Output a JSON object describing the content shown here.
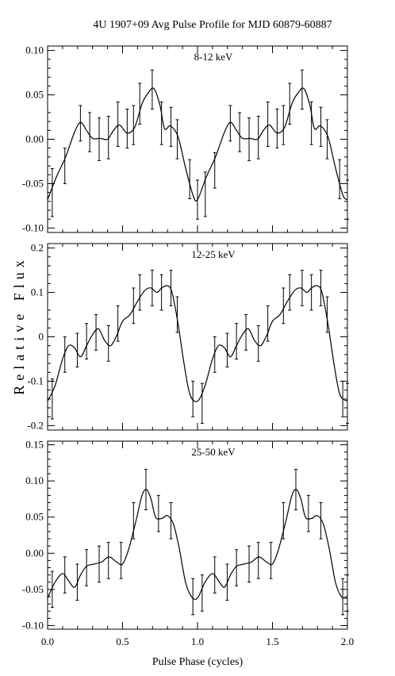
{
  "title": "4U 1907+09 Avg Pulse Profile for MJD 60879-60887",
  "ylabel": "Relative Flux",
  "xlabel": "Pulse Phase (cycles)",
  "x_ticks": [
    "0.0",
    "0.5",
    "1.0",
    "1.5",
    "2.0"
  ],
  "chart_data": [
    {
      "type": "line",
      "panel_label": "8-12 keV",
      "xlim": [
        0.0,
        2.0
      ],
      "ylim": [
        -0.105,
        0.105
      ],
      "y_ticks": [
        "0.10",
        "0.05",
        "0.00",
        "-0.05",
        "-0.10"
      ],
      "y_tick_values": [
        0.1,
        0.05,
        0.0,
        -0.05,
        -0.1
      ],
      "x": [
        0.031,
        0.115,
        0.219,
        0.281,
        0.344,
        0.406,
        0.469,
        0.531,
        0.573,
        0.615,
        0.698,
        0.76,
        0.823,
        0.865,
        0.948,
        1.0,
        1.052,
        1.115,
        1.219,
        1.281,
        1.344,
        1.406,
        1.469,
        1.531,
        1.573,
        1.615,
        1.698,
        1.76,
        1.823,
        1.865,
        1.948,
        2.0
      ],
      "y": [
        -0.06,
        -0.03,
        0.018,
        0.008,
        0.0,
        0.002,
        0.017,
        0.012,
        0.016,
        0.04,
        0.056,
        0.018,
        0.014,
        0.0,
        -0.045,
        -0.068,
        -0.062,
        -0.035,
        0.018,
        0.008,
        0.0,
        0.002,
        0.017,
        0.012,
        0.016,
        0.04,
        0.056,
        0.018,
        0.014,
        0.0,
        -0.045,
        -0.068
      ],
      "yerr": [
        0.027,
        0.02,
        0.02,
        0.022,
        0.024,
        0.024,
        0.025,
        0.022,
        0.022,
        0.023,
        0.022,
        0.024,
        0.022,
        0.022,
        0.022,
        0.022,
        0.025,
        0.02,
        0.02,
        0.022,
        0.024,
        0.024,
        0.025,
        0.022,
        0.022,
        0.023,
        0.022,
        0.024,
        0.022,
        0.022,
        0.022,
        0.022
      ],
      "curve": [
        [
          0.0,
          -0.068
        ],
        [
          0.06,
          -0.042
        ],
        [
          0.12,
          -0.02
        ],
        [
          0.18,
          0.008
        ],
        [
          0.22,
          0.019
        ],
        [
          0.26,
          0.01
        ],
        [
          0.3,
          0.001
        ],
        [
          0.35,
          0.001
        ],
        [
          0.4,
          0.0
        ],
        [
          0.44,
          0.01
        ],
        [
          0.48,
          0.016
        ],
        [
          0.53,
          0.007
        ],
        [
          0.58,
          0.013
        ],
        [
          0.63,
          0.04
        ],
        [
          0.67,
          0.052
        ],
        [
          0.71,
          0.057
        ],
        [
          0.75,
          0.038
        ],
        [
          0.78,
          0.012
        ],
        [
          0.82,
          0.015
        ],
        [
          0.87,
          0.003
        ],
        [
          0.92,
          -0.032
        ],
        [
          0.97,
          -0.063
        ],
        [
          1.0,
          -0.068
        ],
        [
          1.06,
          -0.042
        ],
        [
          1.12,
          -0.02
        ],
        [
          1.18,
          0.008
        ],
        [
          1.22,
          0.019
        ],
        [
          1.26,
          0.01
        ],
        [
          1.3,
          0.001
        ],
        [
          1.35,
          0.001
        ],
        [
          1.4,
          0.0
        ],
        [
          1.44,
          0.01
        ],
        [
          1.48,
          0.016
        ],
        [
          1.53,
          0.007
        ],
        [
          1.58,
          0.013
        ],
        [
          1.63,
          0.04
        ],
        [
          1.67,
          0.052
        ],
        [
          1.71,
          0.057
        ],
        [
          1.75,
          0.038
        ],
        [
          1.78,
          0.012
        ],
        [
          1.82,
          0.015
        ],
        [
          1.87,
          0.003
        ],
        [
          1.92,
          -0.032
        ],
        [
          1.97,
          -0.063
        ],
        [
          2.0,
          -0.068
        ]
      ]
    },
    {
      "type": "line",
      "panel_label": "12-25 keV",
      "xlim": [
        0.0,
        2.0
      ],
      "ylim": [
        -0.21,
        0.21
      ],
      "y_ticks": [
        "0.2",
        "0.1",
        "0",
        "-0.1",
        "-0.2"
      ],
      "y_tick_values": [
        0.2,
        0.1,
        0.0,
        -0.1,
        -0.2
      ],
      "x": [
        0.031,
        0.115,
        0.198,
        0.26,
        0.323,
        0.406,
        0.469,
        0.573,
        0.615,
        0.698,
        0.76,
        0.823,
        0.865,
        0.969,
        1.031,
        1.115,
        1.198,
        1.26,
        1.323,
        1.406,
        1.469,
        1.573,
        1.615,
        1.698,
        1.76,
        1.823,
        1.865,
        1.969,
        2.0
      ],
      "y": [
        -0.14,
        -0.04,
        -0.03,
        -0.01,
        0.01,
        -0.015,
        0.03,
        0.07,
        0.1,
        0.11,
        0.1,
        0.11,
        0.05,
        -0.14,
        -0.15,
        -0.04,
        -0.03,
        -0.01,
        0.01,
        -0.015,
        0.03,
        0.07,
        0.1,
        0.11,
        0.1,
        0.11,
        0.05,
        -0.14,
        -0.15
      ],
      "yerr": [
        0.045,
        0.04,
        0.038,
        0.04,
        0.04,
        0.04,
        0.04,
        0.04,
        0.04,
        0.04,
        0.04,
        0.04,
        0.04,
        0.04,
        0.045,
        0.04,
        0.038,
        0.04,
        0.04,
        0.04,
        0.04,
        0.04,
        0.04,
        0.04,
        0.04,
        0.04,
        0.04,
        0.04,
        0.045
      ],
      "curve": [
        [
          0.0,
          -0.145
        ],
        [
          0.05,
          -0.11
        ],
        [
          0.1,
          -0.05
        ],
        [
          0.14,
          -0.02
        ],
        [
          0.18,
          -0.025
        ],
        [
          0.22,
          -0.045
        ],
        [
          0.26,
          -0.02
        ],
        [
          0.3,
          0.005
        ],
        [
          0.34,
          0.018
        ],
        [
          0.38,
          -0.008
        ],
        [
          0.42,
          -0.02
        ],
        [
          0.46,
          0.002
        ],
        [
          0.5,
          0.035
        ],
        [
          0.55,
          0.05
        ],
        [
          0.6,
          0.08
        ],
        [
          0.65,
          0.105
        ],
        [
          0.69,
          0.11
        ],
        [
          0.73,
          0.1
        ],
        [
          0.76,
          0.11
        ],
        [
          0.8,
          0.115
        ],
        [
          0.83,
          0.1
        ],
        [
          0.87,
          0.03
        ],
        [
          0.91,
          -0.06
        ],
        [
          0.95,
          -0.13
        ],
        [
          1.0,
          -0.145
        ],
        [
          1.05,
          -0.11
        ],
        [
          1.1,
          -0.05
        ],
        [
          1.14,
          -0.02
        ],
        [
          1.18,
          -0.025
        ],
        [
          1.22,
          -0.045
        ],
        [
          1.26,
          -0.02
        ],
        [
          1.3,
          0.005
        ],
        [
          1.34,
          0.018
        ],
        [
          1.38,
          -0.008
        ],
        [
          1.42,
          -0.02
        ],
        [
          1.46,
          0.002
        ],
        [
          1.5,
          0.035
        ],
        [
          1.55,
          0.05
        ],
        [
          1.6,
          0.08
        ],
        [
          1.65,
          0.105
        ],
        [
          1.69,
          0.11
        ],
        [
          1.73,
          0.1
        ],
        [
          1.76,
          0.11
        ],
        [
          1.8,
          0.115
        ],
        [
          1.83,
          0.1
        ],
        [
          1.87,
          0.03
        ],
        [
          1.91,
          -0.06
        ],
        [
          1.95,
          -0.13
        ],
        [
          2.0,
          -0.145
        ]
      ]
    },
    {
      "type": "line",
      "panel_label": "25-50 keV",
      "xlim": [
        0.0,
        2.0
      ],
      "ylim": [
        -0.105,
        0.155
      ],
      "y_ticks": [
        "0.15",
        "0.10",
        "0.05",
        "0.00",
        "-0.05",
        "-0.10"
      ],
      "y_tick_values": [
        0.15,
        0.1,
        0.05,
        0.0,
        -0.05,
        -0.1
      ],
      "x": [
        0.031,
        0.115,
        0.198,
        0.26,
        0.344,
        0.406,
        0.49,
        0.573,
        0.656,
        0.74,
        0.823,
        0.969,
        1.031,
        1.115,
        1.198,
        1.26,
        1.344,
        1.406,
        1.49,
        1.573,
        1.656,
        1.74,
        1.823,
        1.969,
        2.0
      ],
      "y": [
        -0.05,
        -0.03,
        -0.04,
        -0.02,
        -0.015,
        -0.01,
        -0.01,
        0.045,
        0.088,
        0.055,
        0.045,
        -0.06,
        -0.055,
        -0.03,
        -0.04,
        -0.02,
        -0.015,
        -0.01,
        -0.01,
        0.045,
        0.088,
        0.055,
        0.045,
        -0.06,
        -0.055
      ],
      "yerr": [
        0.025,
        0.025,
        0.025,
        0.025,
        0.025,
        0.025,
        0.025,
        0.025,
        0.028,
        0.025,
        0.025,
        0.025,
        0.025,
        0.025,
        0.025,
        0.025,
        0.025,
        0.025,
        0.025,
        0.025,
        0.028,
        0.025,
        0.025,
        0.025,
        0.025
      ],
      "curve": [
        [
          0.0,
          -0.062
        ],
        [
          0.05,
          -0.04
        ],
        [
          0.1,
          -0.028
        ],
        [
          0.14,
          -0.038
        ],
        [
          0.18,
          -0.047
        ],
        [
          0.22,
          -0.03
        ],
        [
          0.26,
          -0.018
        ],
        [
          0.31,
          -0.015
        ],
        [
          0.36,
          -0.012
        ],
        [
          0.41,
          -0.005
        ],
        [
          0.46,
          -0.012
        ],
        [
          0.5,
          -0.015
        ],
        [
          0.54,
          0.005
        ],
        [
          0.59,
          0.045
        ],
        [
          0.63,
          0.08
        ],
        [
          0.66,
          0.088
        ],
        [
          0.69,
          0.075
        ],
        [
          0.72,
          0.05
        ],
        [
          0.76,
          0.048
        ],
        [
          0.8,
          0.052
        ],
        [
          0.84,
          0.04
        ],
        [
          0.88,
          0.005
        ],
        [
          0.92,
          -0.04
        ],
        [
          0.96,
          -0.06
        ],
        [
          1.0,
          -0.062
        ],
        [
          1.05,
          -0.04
        ],
        [
          1.1,
          -0.028
        ],
        [
          1.14,
          -0.038
        ],
        [
          1.18,
          -0.047
        ],
        [
          1.22,
          -0.03
        ],
        [
          1.26,
          -0.018
        ],
        [
          1.31,
          -0.015
        ],
        [
          1.36,
          -0.012
        ],
        [
          1.41,
          -0.005
        ],
        [
          1.46,
          -0.012
        ],
        [
          1.5,
          -0.015
        ],
        [
          1.54,
          0.005
        ],
        [
          1.59,
          0.045
        ],
        [
          1.63,
          0.08
        ],
        [
          1.66,
          0.088
        ],
        [
          1.69,
          0.075
        ],
        [
          1.72,
          0.05
        ],
        [
          1.76,
          0.048
        ],
        [
          1.8,
          0.052
        ],
        [
          1.84,
          0.04
        ],
        [
          1.88,
          0.005
        ],
        [
          1.92,
          -0.04
        ],
        [
          1.96,
          -0.06
        ],
        [
          2.0,
          -0.062
        ]
      ]
    }
  ]
}
